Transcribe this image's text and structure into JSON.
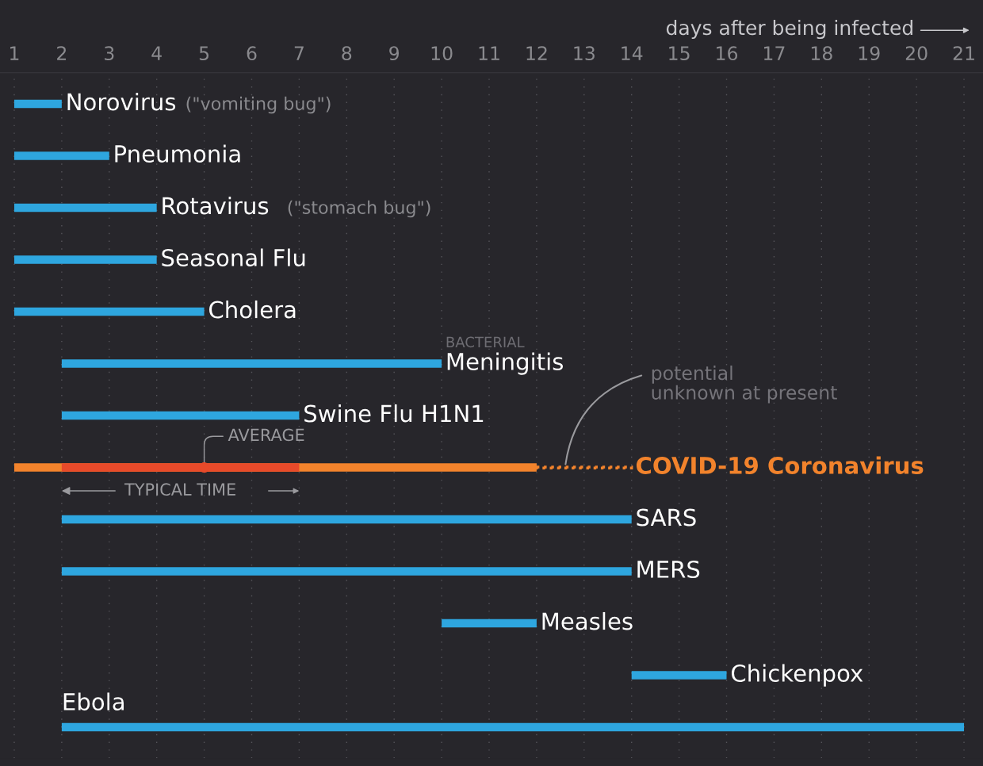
{
  "chart_data": {
    "type": "bar",
    "orientation": "horizontal",
    "xlabel": "days after being infected",
    "categories": [
      "Norovirus",
      "Pneumonia",
      "Rotavirus",
      "Seasonal Flu",
      "Cholera",
      "Meningitis",
      "Swine Flu H1N1",
      "COVID-19 Coronavirus",
      "SARS",
      "MERS",
      "Measles",
      "Chickenpox",
      "Ebola"
    ],
    "series": [
      {
        "color": "#2ea6df",
        "base": [
          1,
          1,
          1,
          1,
          1,
          2,
          2,
          null,
          2,
          2,
          10,
          14,
          2
        ],
        "values": [
          1,
          2,
          3,
          3,
          4,
          8,
          5,
          null,
          12,
          12,
          2,
          2,
          19
        ]
      },
      {
        "color": "#f2832c",
        "base": [
          null,
          null,
          null,
          null,
          null,
          null,
          null,
          1,
          null,
          null,
          null,
          null,
          null
        ],
        "values": [
          null,
          null,
          null,
          null,
          null,
          null,
          null,
          11,
          null,
          null,
          null,
          null,
          null
        ]
      },
      {
        "color": "#e84a2a",
        "base": [
          null,
          null,
          null,
          null,
          null,
          null,
          null,
          2,
          null,
          null,
          null,
          null,
          null
        ],
        "values": [
          null,
          null,
          null,
          null,
          null,
          null,
          null,
          5,
          null,
          null,
          null,
          null,
          null
        ]
      },
      {
        "color": "#f2832c",
        "line_style": "dotted",
        "base": [
          null,
          null,
          null,
          null,
          null,
          null,
          null,
          12,
          null,
          null,
          null,
          null,
          null
        ],
        "values": [
          null,
          null,
          null,
          null,
          null,
          null,
          null,
          2,
          null,
          null,
          null,
          null,
          null
        ]
      },
      {
        "type": "scatter",
        "color": "#e84a2a",
        "values": [
          null,
          null,
          null,
          null,
          null,
          null,
          null,
          5,
          null,
          null,
          null,
          null,
          null
        ]
      }
    ],
    "annotations": [
      "(\"vomiting bug\")",
      "(\"stomach bug\")",
      "BACTERIAL",
      {
        "text": "AVERAGE",
        "x": 5,
        "y": "COVID-19 Coronavirus"
      },
      "TYPICAL TIME",
      {
        "text": "potential\nunknown at present",
        "x": 12.6,
        "y": "COVID-19 Coronavirus"
      }
    ],
    "xlim": [
      0.7,
      21.4
    ],
    "xticks": [
      1,
      2,
      3,
      4,
      5,
      6,
      7,
      8,
      9,
      10,
      11,
      12,
      13,
      14,
      15,
      16,
      17,
      18,
      19,
      20,
      21
    ],
    "tick_labels": "x",
    "grid": "x",
    "legend": false
  }
}
